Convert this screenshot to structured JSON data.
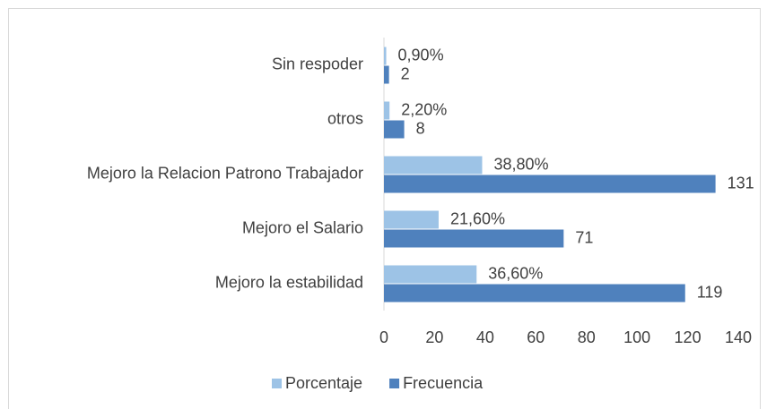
{
  "chart_data": {
    "type": "bar",
    "orientation": "horizontal",
    "categories": [
      "Sin respoder",
      "otros",
      "Mejoro la Relacion Patrono Trabajador",
      "Mejoro el Salario",
      "Mejoro la estabilidad"
    ],
    "series": [
      {
        "name": "Porcentaje",
        "color": "#9dc3e6",
        "values": [
          0.9,
          2.2,
          38.8,
          21.6,
          36.6
        ],
        "value_labels": [
          "0,90%",
          "2,20%",
          "38,80%",
          "21,60%",
          "36,60%"
        ]
      },
      {
        "name": "Frecuencia",
        "color": "#4f81bd",
        "values": [
          2,
          8,
          131,
          71,
          119
        ]
      }
    ],
    "xlim": [
      0,
      140
    ],
    "xticks": [
      0,
      20,
      40,
      60,
      80,
      100,
      120,
      140
    ],
    "grid": false,
    "legend": "bottom"
  }
}
